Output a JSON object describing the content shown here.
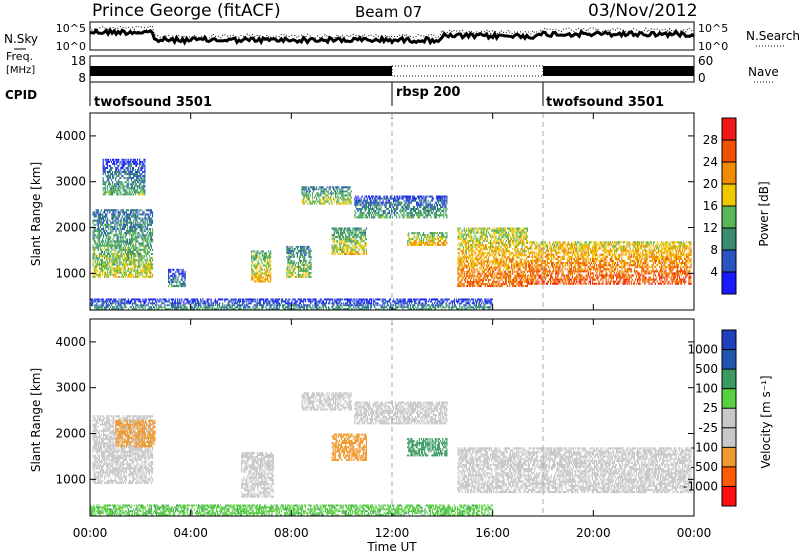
{
  "header": {
    "station": "Prince George (fitACF)",
    "beam": "Beam 07",
    "date": "03/Nov/2012"
  },
  "left_labels": {
    "nsky": "N.Sky",
    "freq": "Freq.",
    "freq_unit": "[MHz]",
    "cpid": "CPID"
  },
  "right_labels": {
    "nsearch": "N.Search",
    "nave": "Nave"
  },
  "noise_axis": {
    "left_ticks": [
      "10^5",
      "10^0"
    ],
    "right_ticks": [
      "10^5",
      "10^0"
    ]
  },
  "freq_axis": {
    "left_ticks": [
      "18",
      "8"
    ],
    "right_ticks": [
      "60",
      "0"
    ]
  },
  "cpid_segments": [
    {
      "label": "twofsound 3501",
      "start_hour": 0,
      "end_hour": 12
    },
    {
      "label": "rbsp 200",
      "start_hour": 12,
      "end_hour": 18
    },
    {
      "label": "twofsound 3501",
      "start_hour": 18,
      "end_hour": 24
    }
  ],
  "colors": {
    "power": [
      "#1a1aff",
      "#2a55c0",
      "#3a8c70",
      "#58b858",
      "#f0c800",
      "#f08c00",
      "#f05000",
      "#f01818"
    ],
    "velocity": [
      "#ff1010",
      "#ff5a00",
      "#f09a30",
      "#c8c8c8",
      "#c8c8c8",
      "#58d040",
      "#3a9a60",
      "#2255b0",
      "#2040c0"
    ]
  },
  "chart_data": [
    {
      "type": "heatmap",
      "title": "",
      "xlabel": "Time UT",
      "ylabel": "Slant Range [km]",
      "xlim": [
        0,
        24
      ],
      "ylim": [
        200,
        4500
      ],
      "x_tick_labels": [
        "00:00",
        "04:00",
        "08:00",
        "12:00",
        "16:00",
        "20:00",
        "00:00"
      ],
      "y_ticks": [
        1000,
        2000,
        3000,
        4000
      ],
      "colorbar": {
        "label": "Power [dB]",
        "range": [
          0,
          32
        ],
        "ticks": [
          4,
          8,
          12,
          16,
          20,
          24,
          28
        ]
      },
      "echo_regions": [
        {
          "t0": 0.1,
          "t1": 2.5,
          "r0": 900,
          "r1": 2400,
          "level": 12
        },
        {
          "t0": 0.5,
          "t1": 2.2,
          "r0": 2700,
          "r1": 3500,
          "level": 8
        },
        {
          "t0": 3.1,
          "t1": 3.8,
          "r0": 700,
          "r1": 1100,
          "level": 6
        },
        {
          "t0": 6.4,
          "t1": 7.2,
          "r0": 800,
          "r1": 1500,
          "level": 16
        },
        {
          "t0": 7.8,
          "t1": 8.8,
          "r0": 900,
          "r1": 1600,
          "level": 12
        },
        {
          "t0": 8.4,
          "t1": 10.4,
          "r0": 2500,
          "r1": 2900,
          "level": 12
        },
        {
          "t0": 9.6,
          "t1": 11.0,
          "r0": 1400,
          "r1": 2000,
          "level": 14
        },
        {
          "t0": 10.5,
          "t1": 14.2,
          "r0": 2200,
          "r1": 2700,
          "level": 8
        },
        {
          "t0": 12.6,
          "t1": 14.2,
          "r0": 1600,
          "r1": 1900,
          "level": 16
        },
        {
          "t0": 14.6,
          "t1": 17.4,
          "r0": 700,
          "r1": 2000,
          "level": 20
        },
        {
          "t0": 17.4,
          "t1": 23.9,
          "r0": 750,
          "r1": 1700,
          "level": 22
        },
        {
          "t0": 0.0,
          "t1": 16.0,
          "r0": 200,
          "r1": 450,
          "level": 6
        }
      ]
    },
    {
      "type": "heatmap",
      "title": "",
      "xlabel": "Time UT",
      "ylabel": "Slant Range [km]",
      "xlim": [
        0,
        24
      ],
      "ylim": [
        200,
        4500
      ],
      "x_tick_labels": [
        "00:00",
        "04:00",
        "08:00",
        "12:00",
        "16:00",
        "20:00",
        "00:00"
      ],
      "y_ticks": [
        1000,
        2000,
        3000,
        4000
      ],
      "colorbar": {
        "label": "Velocity [m s^-1]",
        "tick_labels": [
          "1000",
          "500",
          "100",
          "25",
          "-25",
          "-100",
          "-500",
          "-1000"
        ]
      },
      "echo_regions": [
        {
          "t0": 0.1,
          "t1": 2.5,
          "r0": 900,
          "r1": 2400,
          "velocity": 0
        },
        {
          "t0": 1.0,
          "t1": 2.6,
          "r0": 1700,
          "r1": 2300,
          "velocity": -300
        },
        {
          "t0": 6.0,
          "t1": 7.3,
          "r0": 600,
          "r1": 1600,
          "velocity": 0
        },
        {
          "t0": 8.4,
          "t1": 10.4,
          "r0": 2500,
          "r1": 2900,
          "velocity": 0
        },
        {
          "t0": 9.6,
          "t1": 11.0,
          "r0": 1400,
          "r1": 2000,
          "velocity": -200
        },
        {
          "t0": 10.5,
          "t1": 14.2,
          "r0": 2200,
          "r1": 2700,
          "velocity": 0
        },
        {
          "t0": 12.6,
          "t1": 14.2,
          "r0": 1500,
          "r1": 1900,
          "velocity": 150
        },
        {
          "t0": 14.6,
          "t1": 23.9,
          "r0": 700,
          "r1": 1700,
          "velocity": 0
        },
        {
          "t0": 0.0,
          "t1": 16.0,
          "r0": 200,
          "r1": 450,
          "velocity": 80
        }
      ]
    }
  ]
}
